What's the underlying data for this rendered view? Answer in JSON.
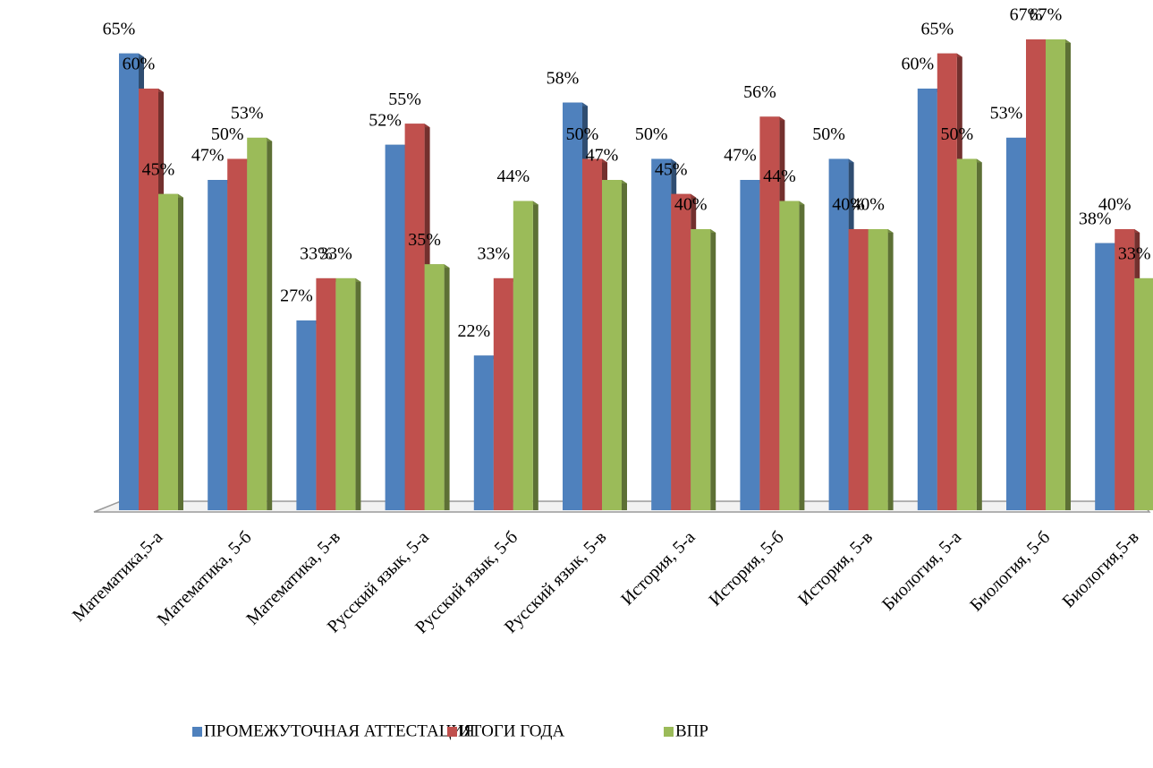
{
  "chart_data": {
    "type": "bar",
    "categories": [
      "Математика,5-а",
      "Математика, 5-б",
      "Математика, 5-в",
      "Русский язык, 5-а",
      "Русский язык, 5-б",
      "Русский язык, 5-в",
      "История, 5-а",
      "История, 5-б",
      "История, 5-в",
      "Биология, 5-а",
      "Биология, 5-б",
      "Биология,5-в"
    ],
    "series": [
      {
        "name": "ПРОМЕЖУТОЧНАЯ АТТЕСТАЦИЯ",
        "color": "#4f81bd",
        "values": [
          65,
          47,
          27,
          52,
          22,
          58,
          50,
          47,
          50,
          60,
          53,
          38
        ],
        "value_labels": [
          "65%",
          "47%",
          "27%",
          "52%",
          "22%",
          "58%",
          "50%",
          "47%",
          "50%",
          "60%",
          "53%",
          "38%"
        ]
      },
      {
        "name": "ИТОГИ ГОДА",
        "color": "#c0504d",
        "values": [
          60,
          50,
          33,
          55,
          33,
          50,
          45,
          56,
          40,
          65,
          67,
          40
        ],
        "value_labels": [
          "60%",
          "50%",
          "33%",
          "55%",
          "33%",
          "50%",
          "45%",
          "56%",
          "40%",
          "65%",
          "67%",
          "40%"
        ]
      },
      {
        "name": "ВПР",
        "color": "#9bbb59",
        "values": [
          45,
          53,
          33,
          35,
          44,
          47,
          40,
          44,
          40,
          50,
          67,
          33
        ],
        "value_labels": [
          "45%",
          "53%",
          "33%",
          "35%",
          "44%",
          "47%",
          "40%",
          "44%",
          "40%",
          "50%",
          "67%",
          "33%"
        ]
      }
    ],
    "legend": "bottom"
  }
}
